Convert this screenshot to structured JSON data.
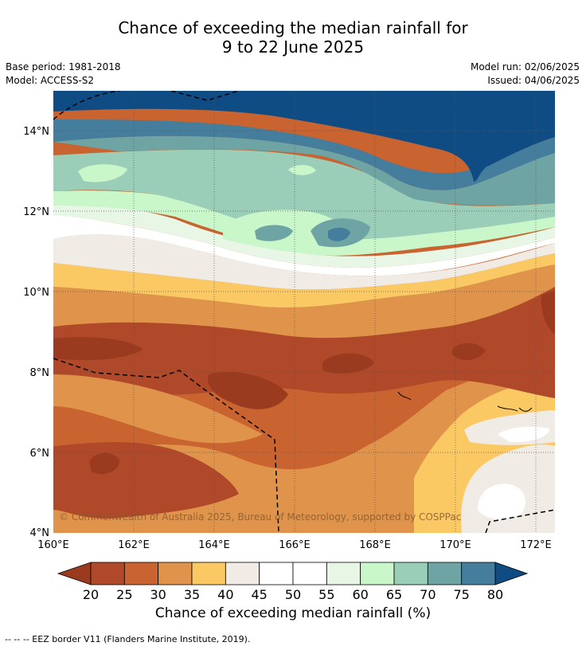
{
  "title_line1": "Chance of exceeding the median rainfall for",
  "title_line2": "9 to 22 June 2025",
  "base_period": "Base period: 1981-2018",
  "model": "Model: ACCESS-S2",
  "model_run": "Model run: 02/06/2025",
  "issued": "Issued: 04/06/2025",
  "copyright": "© Commonwealth of Australia 2025, Bureau of Meteorology, supported by COSPPac",
  "map": {
    "lon_range": [
      160,
      172.5
    ],
    "lat_range": [
      4,
      15
    ],
    "lon_ticks": [
      "160°E",
      "162°E",
      "164°E",
      "166°E",
      "168°E",
      "170°E",
      "172°E"
    ],
    "lat_ticks": [
      "4°N",
      "6°N",
      "8°N",
      "10°N",
      "12°N",
      "14°N"
    ],
    "grid": true
  },
  "colorbar": {
    "label": "Chance of exceeding median rainfall (%)",
    "ticks": [
      "20",
      "25",
      "30",
      "35",
      "40",
      "45",
      "50",
      "55",
      "60",
      "65",
      "70",
      "75",
      "80"
    ],
    "colors": [
      "#9a3a1f",
      "#b0482a",
      "#c9632f",
      "#e0934a",
      "#fbc964",
      "#f0ebe4",
      "#ffffff",
      "#ffffff",
      "#e8f6e6",
      "#c9f7c9",
      "#9bceb8",
      "#6ea4a4",
      "#457d9c",
      "#104c84"
    ]
  },
  "footnote": "--  --  -- EEZ border V11 (Flanders Marine Institute, 2019)."
}
